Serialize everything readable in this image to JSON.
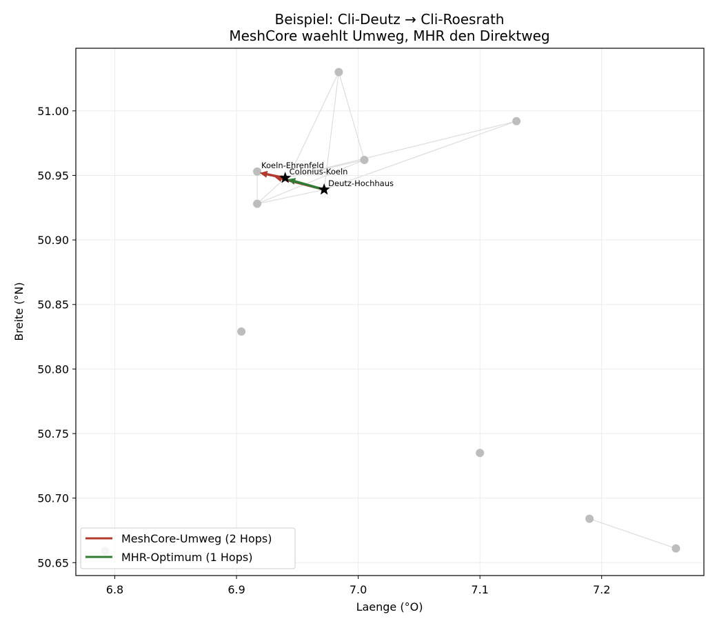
{
  "chart_data": {
    "type": "scatter",
    "title_line1": "Beispiel: Cli-Deutz → Cli-Roesrath",
    "title_line2": "MeshCore waehlt Umweg, MHR den Direktweg",
    "xlabel": "Laenge (°O)",
    "ylabel": "Breite (°N)",
    "xlim": [
      6.768,
      7.284
    ],
    "ylim": [
      50.64,
      51.0485
    ],
    "xticks": [
      6.8,
      6.9,
      7.0,
      7.1,
      7.2
    ],
    "xtick_labels": [
      "6.8",
      "6.9",
      "7.0",
      "7.1",
      "7.2"
    ],
    "yticks": [
      50.65,
      50.7,
      50.75,
      50.8,
      50.85,
      50.9,
      50.95,
      51.0
    ],
    "ytick_labels": [
      "50.65",
      "50.70",
      "50.75",
      "50.80",
      "50.85",
      "50.90",
      "50.95",
      "51.00"
    ],
    "grid": true,
    "legend_position": "lower-left",
    "nodes": [
      {
        "x": 6.984,
        "y": 51.03
      },
      {
        "x": 7.13,
        "y": 50.992
      },
      {
        "x": 7.005,
        "y": 50.962
      },
      {
        "x": 6.917,
        "y": 50.953
      },
      {
        "x": 6.917,
        "y": 50.928
      },
      {
        "x": 6.904,
        "y": 50.829
      },
      {
        "x": 7.1,
        "y": 50.735
      },
      {
        "x": 7.19,
        "y": 50.684
      },
      {
        "x": 7.261,
        "y": 50.661
      },
      {
        "x": 6.792,
        "y": 50.659
      }
    ],
    "edges": [
      [
        [
          6.984,
          51.03
        ],
        [
          6.945,
          50.953
        ]
      ],
      [
        [
          6.984,
          51.03
        ],
        [
          6.972,
          50.939
        ]
      ],
      [
        [
          6.984,
          51.03
        ],
        [
          7.005,
          50.962
        ]
      ],
      [
        [
          7.13,
          50.992
        ],
        [
          6.94,
          50.948
        ]
      ],
      [
        [
          7.13,
          50.992
        ],
        [
          6.972,
          50.939
        ]
      ],
      [
        [
          7.005,
          50.962
        ],
        [
          6.94,
          50.948
        ]
      ],
      [
        [
          7.005,
          50.962
        ],
        [
          6.917,
          50.928
        ]
      ],
      [
        [
          6.917,
          50.953
        ],
        [
          6.917,
          50.928
        ]
      ],
      [
        [
          6.917,
          50.928
        ],
        [
          6.94,
          50.948
        ]
      ],
      [
        [
          6.917,
          50.928
        ],
        [
          6.972,
          50.939
        ]
      ],
      [
        [
          7.19,
          50.684
        ],
        [
          7.261,
          50.661
        ]
      ]
    ],
    "stars": [
      {
        "name": "Colonius-Koeln",
        "x": 6.94,
        "y": 50.948
      },
      {
        "name": "Deutz-Hochhaus",
        "x": 6.972,
        "y": 50.939
      }
    ],
    "labels": [
      {
        "text": "Koeln-Ehrenfeld",
        "x": 6.917,
        "y": 50.953
      },
      {
        "text": "Colonius-Koeln",
        "x": 6.94,
        "y": 50.948
      },
      {
        "text": "Deutz-Hochhaus",
        "x": 6.972,
        "y": 50.939
      }
    ],
    "series": [
      {
        "name": "MeshCore-Umweg (2 Hops)",
        "color": "#b03a2e",
        "segments": [
          [
            [
              6.94,
              50.948
            ],
            [
              6.919,
              50.952
            ]
          ],
          [
            [
              6.972,
              50.939
            ],
            [
              6.931,
              50.949
            ]
          ]
        ]
      },
      {
        "name": "MHR-Optimum (1 Hops)",
        "color": "#2e7d32",
        "segments": [
          [
            [
              6.972,
              50.939
            ],
            [
              6.942,
              50.947
            ]
          ]
        ]
      }
    ],
    "colors": {
      "node": "#bdbdbd",
      "edge": "#dddddd",
      "grid": "#ebebeb",
      "star": "#000000"
    }
  }
}
